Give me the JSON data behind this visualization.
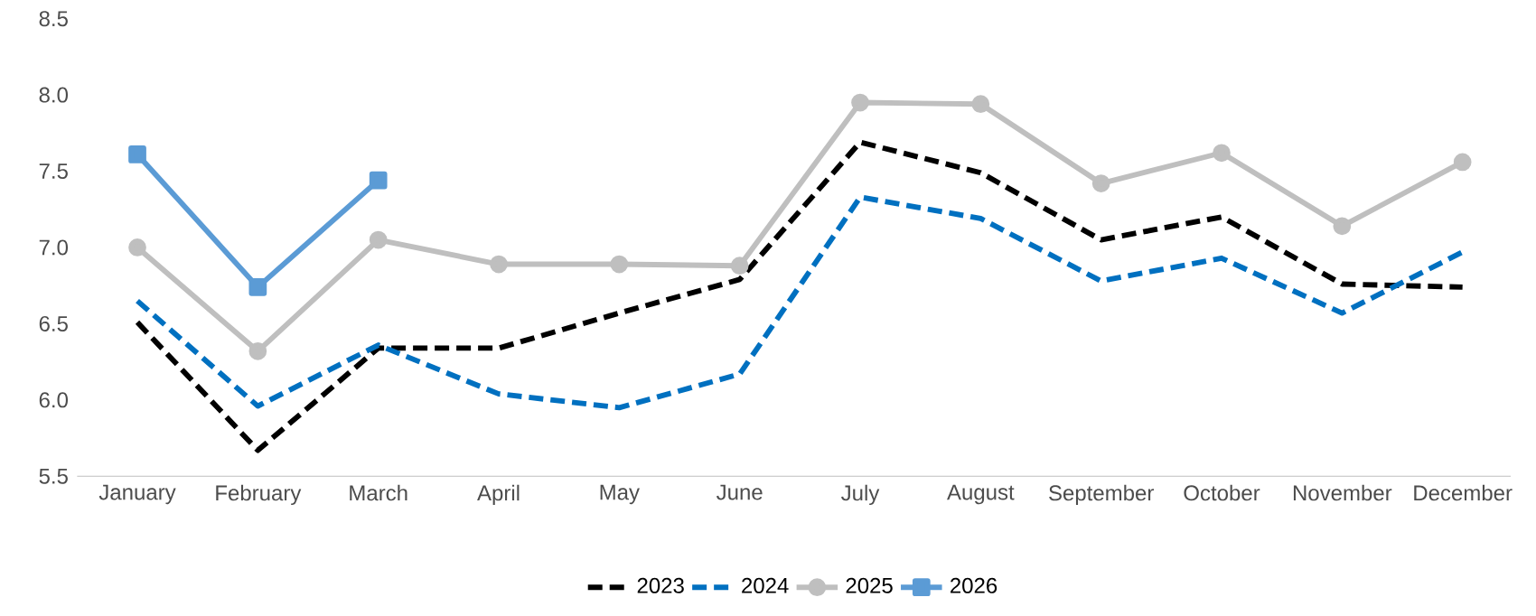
{
  "chart_data": {
    "type": "line",
    "categories": [
      "January",
      "February",
      "March",
      "April",
      "May",
      "June",
      "July",
      "August",
      "September",
      "October",
      "November",
      "December"
    ],
    "series": [
      {
        "name": "2023",
        "color": "#000000",
        "line_style": "dashed",
        "marker": "none",
        "values": [
          6.51,
          5.67,
          6.34,
          6.34,
          6.57,
          6.79,
          7.69,
          7.49,
          7.05,
          7.2,
          6.76,
          6.74
        ]
      },
      {
        "name": "2024",
        "color": "#0070c0",
        "line_style": "dashed",
        "marker": "none",
        "values": [
          6.65,
          5.96,
          6.36,
          6.04,
          5.95,
          6.17,
          7.33,
          7.19,
          6.78,
          6.93,
          6.57,
          6.97
        ]
      },
      {
        "name": "2025",
        "color": "#bfbfbf",
        "line_style": "solid",
        "marker": "circle",
        "values": [
          7.0,
          6.32,
          7.05,
          6.89,
          6.89,
          6.88,
          7.95,
          7.94,
          7.42,
          7.62,
          7.14,
          7.56
        ]
      },
      {
        "name": "2026",
        "color": "#5b9bd5",
        "line_style": "solid",
        "marker": "square",
        "values": [
          7.61,
          6.74,
          7.44,
          null,
          null,
          null,
          null,
          null,
          null,
          null,
          null,
          null
        ]
      }
    ],
    "ylim": [
      5.5,
      8.5
    ],
    "yticks": [
      5.5,
      {
        "value": 6,
        "label": "6.0"
      },
      6.5,
      {
        "value": 7,
        "label": "7.0"
      },
      7.5,
      {
        "value": 8,
        "label": "8.0"
      },
      8.5
    ],
    "grid": false,
    "legend": "bottom"
  }
}
